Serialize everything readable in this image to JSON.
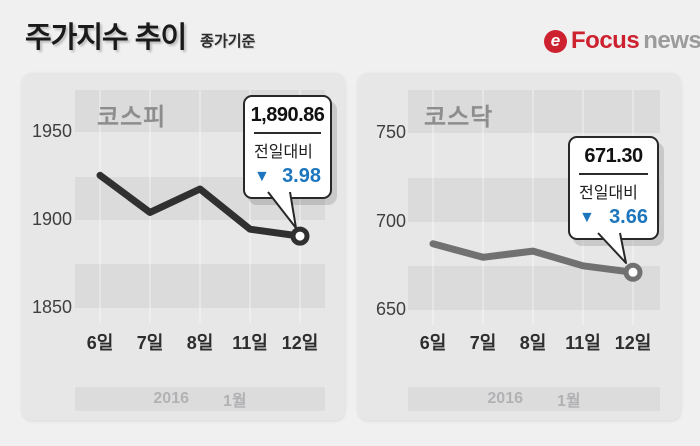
{
  "header": {
    "title": "주가지수 추이",
    "subtitle": "종가기준",
    "logo": {
      "icon_letter": "e",
      "brand": "Focus",
      "brand2": "news"
    }
  },
  "colors": {
    "down_blue": "#1d76bd",
    "kospi_line": "#303030",
    "kosdaq_line": "#717171",
    "logo_red": "#ce2130",
    "logo_gray": "#9b9b9b"
  },
  "charts": [
    {
      "title": "코스피",
      "y_ticks": [
        "1950",
        "1900",
        "1850"
      ],
      "x_ticks": [
        "6일",
        "7일",
        "8일",
        "11일",
        "12일"
      ],
      "callout": {
        "value": "1,890.86",
        "label": "전일대비",
        "direction": "▼",
        "change": "3.98"
      },
      "footer": {
        "year": "2016",
        "month": "1월"
      }
    },
    {
      "title": "코스닥",
      "y_ticks": [
        "750",
        "700",
        "650"
      ],
      "x_ticks": [
        "6일",
        "7일",
        "8일",
        "11일",
        "12일"
      ],
      "callout": {
        "value": "671.30",
        "label": "전일대비",
        "direction": "▼",
        "change": "3.66"
      },
      "footer": {
        "year": "2016",
        "month": "1월"
      }
    }
  ],
  "chart_data": [
    {
      "type": "line",
      "title": "코스피",
      "x": [
        "6일",
        "7일",
        "8일",
        "11일",
        "12일"
      ],
      "values": [
        1925.4,
        1904.3,
        1917.6,
        1894.8,
        1890.86
      ],
      "yticks": [
        1950,
        1900,
        1850
      ],
      "ylim": [
        1850,
        1975
      ],
      "line_color": "#303030",
      "last_point_label": "1,890.86",
      "change_vs_prev_day": -3.98,
      "x_axis_period": "2016 1월",
      "grid": "horizontal-bands-and-vertical-lines",
      "legend": "none"
    },
    {
      "type": "line",
      "title": "코스닥",
      "x": [
        "6일",
        "7일",
        "8일",
        "11일",
        "12일"
      ],
      "values": [
        687.4,
        679.8,
        683.3,
        675.0,
        671.3
      ],
      "yticks": [
        750,
        700,
        650
      ],
      "ylim": [
        650,
        775
      ],
      "line_color": "#717171",
      "last_point_label": "671.30",
      "change_vs_prev_day": -3.66,
      "x_axis_period": "2016 1월",
      "grid": "horizontal-bands-and-vertical-lines",
      "legend": "none"
    }
  ]
}
